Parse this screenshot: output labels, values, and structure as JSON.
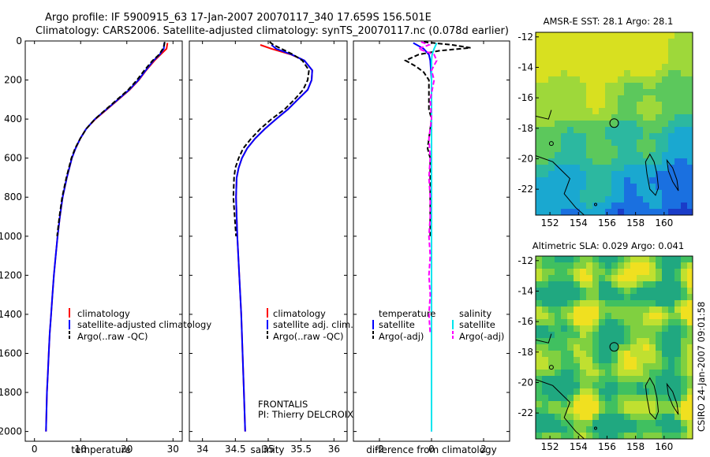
{
  "header": {
    "line1": "Argo profile: IF 5900915_63 17-Jan-2007 20070117_340 17.659S 156.501E",
    "line2": "Climatology: CARS2006. Satellite-adjusted climatology: synTS_20070117.nc (0.078d earlier)"
  },
  "footer_stamp": "CSIRO 24-Jan-2007 09:01:58",
  "pressure_ticks": [
    "0",
    "200",
    "400",
    "600",
    "800",
    "1000",
    "1200",
    "1400",
    "1600",
    "1800",
    "2000"
  ],
  "colors": {
    "climatology": "#ff0000",
    "satellite_adjusted": "#0000ff",
    "argo_raw": "#000000",
    "salinity_satellite": "#00e5ee",
    "salinity_argo": "#ff00ff"
  },
  "chart_data": [
    {
      "type": "line",
      "id": "temperature",
      "xlabel": "temperature",
      "ylabel": "",
      "xlim": [
        -2,
        32
      ],
      "ylim": [
        2050,
        0
      ],
      "xticks": [
        "0",
        "10",
        "20",
        "30"
      ],
      "y_reversed": true,
      "legend": [
        "climatology",
        "satellite-adjusted climatology",
        "Argo(..raw -QC)"
      ],
      "series": [
        {
          "name": "climatology",
          "color": "#ff0000",
          "p": [
            10,
            40,
            70,
            100,
            150,
            200,
            250,
            300,
            350,
            400,
            450,
            500,
            550,
            600,
            700,
            800,
            900,
            1000,
            1100,
            1200,
            1300,
            1400,
            1500,
            1600,
            1700,
            1800,
            1900,
            2000
          ],
          "v": [
            28.8,
            28.6,
            27.3,
            26.0,
            24.2,
            22.6,
            20.6,
            18.2,
            15.7,
            13.2,
            11.2,
            9.9,
            8.9,
            8.1,
            7.0,
            6.1,
            5.5,
            5.0,
            4.6,
            4.2,
            3.9,
            3.6,
            3.3,
            3.1,
            2.9,
            2.7,
            2.6,
            2.5
          ]
        },
        {
          "name": "satellite-adjusted climatology",
          "color": "#0000ff",
          "p": [
            10,
            40,
            70,
            100,
            150,
            200,
            250,
            300,
            350,
            400,
            450,
            500,
            550,
            600,
            700,
            800,
            900,
            1000,
            1100,
            1200,
            1300,
            1400,
            1500,
            1600,
            1700,
            1800,
            1900,
            2000
          ],
          "v": [
            28.1,
            28.0,
            27.1,
            25.8,
            24.1,
            22.5,
            20.5,
            18.1,
            15.6,
            13.1,
            11.2,
            9.9,
            8.9,
            8.1,
            7.0,
            6.1,
            5.5,
            5.0,
            4.6,
            4.2,
            3.9,
            3.6,
            3.3,
            3.1,
            2.9,
            2.7,
            2.6,
            2.5
          ]
        },
        {
          "name": "Argo(..raw -QC)",
          "color": "#000000",
          "p": [
            5,
            20,
            40,
            70,
            100,
            150,
            200,
            250,
            300,
            350,
            400,
            450,
            500,
            550,
            600,
            700,
            800,
            900,
            1000
          ],
          "v": [
            28.2,
            28.1,
            27.8,
            27.0,
            25.6,
            23.8,
            22.2,
            20.3,
            17.9,
            15.5,
            13.1,
            11.2,
            9.9,
            8.8,
            8.0,
            6.9,
            6.0,
            5.4,
            4.9
          ]
        }
      ]
    },
    {
      "type": "line",
      "id": "salinity",
      "xlabel": "salinity",
      "ylabel": "",
      "xlim": [
        33.8,
        36.2
      ],
      "ylim": [
        2050,
        0
      ],
      "xticks": [
        "34",
        "34.5",
        "35",
        "35.5",
        "36"
      ],
      "y_reversed": true,
      "legend": [
        "climatology",
        "satellite adj. clim.",
        "Argo(..raw -QC)"
      ],
      "annotation": [
        "FRONTALIS",
        "PI: Thierry DELCROIX"
      ],
      "series": [
        {
          "name": "climatology",
          "color": "#ff0000",
          "p": [
            20,
            40,
            70,
            100,
            150,
            200,
            250,
            300,
            350,
            400,
            450,
            500,
            550,
            600,
            650,
            700,
            800,
            900,
            1000,
            1200,
            1400,
            1600,
            1800,
            2000
          ],
          "v": [
            34.88,
            35.05,
            35.35,
            35.55,
            35.67,
            35.66,
            35.6,
            35.45,
            35.3,
            35.12,
            34.95,
            34.8,
            34.68,
            34.6,
            34.55,
            34.52,
            34.51,
            34.52,
            34.53,
            34.56,
            34.59,
            34.61,
            34.63,
            34.65
          ]
        },
        {
          "name": "satellite adj. clim.",
          "color": "#0000ff",
          "p": [
            20,
            40,
            70,
            100,
            150,
            200,
            250,
            300,
            350,
            400,
            450,
            500,
            550,
            600,
            650,
            700,
            800,
            900,
            1000,
            1200,
            1400,
            1600,
            1800,
            2000
          ],
          "v": [
            35.05,
            35.12,
            35.36,
            35.55,
            35.67,
            35.66,
            35.6,
            35.45,
            35.3,
            35.12,
            34.95,
            34.8,
            34.68,
            34.6,
            34.55,
            34.52,
            34.51,
            34.52,
            34.53,
            34.56,
            34.59,
            34.61,
            34.63,
            34.65
          ]
        },
        {
          "name": "Argo(..raw -QC)",
          "color": "#000000",
          "p": [
            5,
            20,
            40,
            70,
            100,
            150,
            200,
            250,
            300,
            350,
            400,
            450,
            500,
            550,
            600,
            650,
            700,
            800,
            900,
            1000
          ],
          "v": [
            35.02,
            35.08,
            35.2,
            35.38,
            35.52,
            35.62,
            35.6,
            35.53,
            35.4,
            35.25,
            35.05,
            34.88,
            34.74,
            34.62,
            34.55,
            34.5,
            34.48,
            34.47,
            34.49,
            34.51
          ]
        }
      ]
    },
    {
      "type": "line",
      "id": "difference",
      "xlabel": "difference from climatology",
      "ylabel": "",
      "xlim": [
        -3,
        3
      ],
      "ylim": [
        2050,
        0
      ],
      "xticks": [
        "-2",
        "0",
        "2"
      ],
      "y_reversed": true,
      "legend": {
        "temperature_header": "temperature",
        "salinity_header": "salinity",
        "items": [
          "satellite",
          "Argo(-adj)",
          "satellite",
          "Argo(-adj)"
        ]
      },
      "series": [
        {
          "name": "temperature satellite",
          "color": "#0000ff",
          "p": [
            10,
            40,
            70,
            100,
            200,
            300,
            400,
            600,
            800,
            1000,
            1200,
            1400,
            1600,
            1800,
            2000
          ],
          "v": [
            -0.7,
            -0.3,
            -0.1,
            -0.05,
            0,
            0,
            0,
            0,
            0,
            0,
            0,
            0,
            0,
            0,
            0
          ]
        },
        {
          "name": "temperature Argo(-adj)",
          "color": "#000000",
          "p": [
            5,
            20,
            35,
            50,
            70,
            100,
            130,
            160,
            200,
            250,
            300,
            350,
            400,
            450,
            500,
            550,
            600,
            700,
            800,
            900,
            1000
          ],
          "v": [
            -0.3,
            0.8,
            1.5,
            0.3,
            -0.5,
            -1.0,
            -0.6,
            -0.3,
            -0.1,
            -0.1,
            -0.1,
            -0.1,
            0,
            -0.05,
            -0.1,
            -0.15,
            -0.05,
            -0.05,
            -0.05,
            -0.05,
            -0.05
          ]
        },
        {
          "name": "salinity satellite",
          "color": "#00e5ee",
          "p": [
            10,
            40,
            70,
            100,
            200,
            300,
            400,
            600,
            800,
            1000,
            1200,
            1400,
            1600,
            1800,
            2000
          ],
          "v": [
            0.2,
            0.1,
            0.02,
            0,
            0,
            0,
            0,
            0,
            0,
            0,
            0,
            0,
            0,
            0,
            0
          ]
        },
        {
          "name": "salinity Argo(-adj)",
          "color": "#ff00ff",
          "p": [
            5,
            20,
            40,
            70,
            100,
            150,
            200,
            300,
            400,
            500,
            600,
            700,
            800,
            900,
            1000,
            1100,
            1200,
            1300,
            1400,
            1500
          ],
          "v": [
            -0.4,
            -0.1,
            -0.5,
            0.1,
            0.2,
            0,
            0.1,
            -0.05,
            0,
            -0.1,
            -0.05,
            -0.1,
            -0.05,
            -0.05,
            -0.1,
            -0.05,
            -0.1,
            -0.05,
            -0.1,
            -0.05
          ]
        }
      ]
    },
    {
      "type": "heatmap",
      "id": "sst_map",
      "title": "AMSR-E SST: 28.1 Argo: 28.1",
      "xticks": [
        "152",
        "154",
        "156",
        "158",
        "160"
      ],
      "yticks": [
        "-12",
        "-14",
        "-16",
        "-18",
        "-20",
        "-22"
      ],
      "xlim": [
        151,
        162
      ],
      "ylim": [
        -23.7,
        -11.7
      ],
      "marker": {
        "lon": 156.501,
        "lat": -17.659
      }
    },
    {
      "type": "heatmap",
      "id": "sla_map",
      "title": "Altimetric SLA: 0.029 Argo: 0.041",
      "xticks": [
        "152",
        "154",
        "156",
        "158",
        "160"
      ],
      "yticks": [
        "-12",
        "-14",
        "-16",
        "-18",
        "-20",
        "-22"
      ],
      "xlim": [
        151,
        162
      ],
      "ylim": [
        -23.7,
        -11.7
      ],
      "marker": {
        "lon": 156.501,
        "lat": -17.659
      }
    }
  ]
}
